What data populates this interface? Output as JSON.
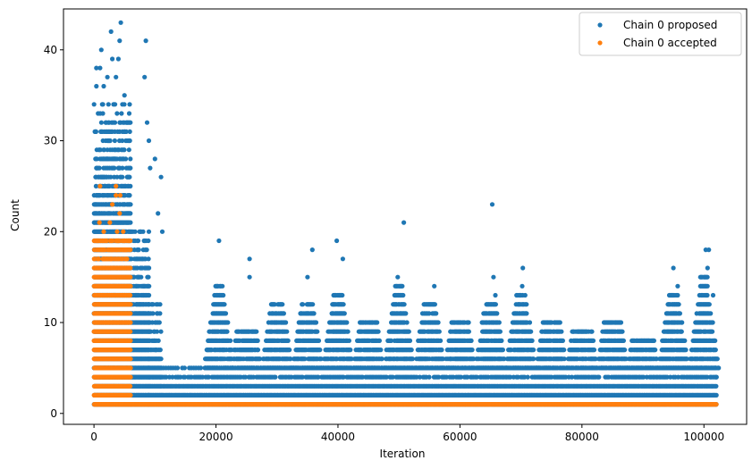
{
  "chart_data": {
    "type": "scatter",
    "title": "",
    "xlabel": "Iteration",
    "ylabel": "Count",
    "xlim": [
      -5000,
      107000
    ],
    "ylim": [
      -1.2,
      44.5
    ],
    "xticks": [
      0,
      20000,
      40000,
      60000,
      80000,
      100000
    ],
    "xtick_labels": [
      "0",
      "20000",
      "40000",
      "60000",
      "80000",
      "100000"
    ],
    "yticks": [
      0,
      10,
      20,
      30,
      40
    ],
    "ytick_labels": [
      "0",
      "10",
      "20",
      "30",
      "40"
    ],
    "grid": false,
    "legend_position": "top-right",
    "series": [
      {
        "name": "Chain 0 proposed",
        "color": "#1f77b4",
        "marker": "circle",
        "description_of_distribution": "dense bands of integer counts across all iterations",
        "bands": [
          {
            "x_range": [
              0,
              6000
            ],
            "y_max": 34
          },
          {
            "x_range": [
              6000,
              9000
            ],
            "y_max": 20
          },
          {
            "x_range": [
              9000,
              11000
            ],
            "y_max": 12
          },
          {
            "x_range": [
              11000,
              100000
            ],
            "y_max": 5
          },
          {
            "x_range": [
              6000,
              102000
            ],
            "y_min": 1,
            "y_max": 2
          }
        ],
        "clusters": [
          {
            "x": 20500,
            "y_max": 14
          },
          {
            "x": 25000,
            "y_max": 9
          },
          {
            "x": 30000,
            "y_max": 12
          },
          {
            "x": 35000,
            "y_max": 12
          },
          {
            "x": 40000,
            "y_max": 13
          },
          {
            "x": 45000,
            "y_max": 10
          },
          {
            "x": 50000,
            "y_max": 14
          },
          {
            "x": 55000,
            "y_max": 12
          },
          {
            "x": 60000,
            "y_max": 10
          },
          {
            "x": 65000,
            "y_max": 12
          },
          {
            "x": 70000,
            "y_max": 13
          },
          {
            "x": 75000,
            "y_max": 10
          },
          {
            "x": 80000,
            "y_max": 9
          },
          {
            "x": 85000,
            "y_max": 10
          },
          {
            "x": 90000,
            "y_max": 8
          },
          {
            "x": 95000,
            "y_max": 13
          },
          {
            "x": 100000,
            "y_max": 15
          }
        ],
        "outliers": [
          [
            400,
            38
          ],
          [
            400,
            36
          ],
          [
            1200,
            40
          ],
          [
            1600,
            36
          ],
          [
            2200,
            37
          ],
          [
            2800,
            42
          ],
          [
            3000,
            39
          ],
          [
            3600,
            37
          ],
          [
            4200,
            41
          ],
          [
            4400,
            43
          ],
          [
            4000,
            39
          ],
          [
            1000,
            38
          ],
          [
            5000,
            35
          ],
          [
            8500,
            41
          ],
          [
            8300,
            37
          ],
          [
            8700,
            32
          ],
          [
            9000,
            30
          ],
          [
            9200,
            27
          ],
          [
            10000,
            28
          ],
          [
            10500,
            22
          ],
          [
            11000,
            26
          ],
          [
            11200,
            20
          ],
          [
            20500,
            19
          ],
          [
            25500,
            17
          ],
          [
            25500,
            15
          ],
          [
            35000,
            15
          ],
          [
            35800,
            18
          ],
          [
            39800,
            19
          ],
          [
            40800,
            17
          ],
          [
            49800,
            15
          ],
          [
            50800,
            21
          ],
          [
            55800,
            14
          ],
          [
            65300,
            23
          ],
          [
            65500,
            15
          ],
          [
            65800,
            13
          ],
          [
            70300,
            16
          ],
          [
            70200,
            14
          ],
          [
            95000,
            16
          ],
          [
            95700,
            14
          ],
          [
            100300,
            18
          ],
          [
            100800,
            18
          ],
          [
            100600,
            16
          ],
          [
            101500,
            13
          ],
          [
            102000,
            4
          ]
        ]
      },
      {
        "name": "Chain 0 accepted",
        "color": "#ff7f0e",
        "marker": "circle",
        "description_of_distribution": "dense integer counts 1–19 for iterations 0–6000, then constant 1 to ~102000",
        "bands": [
          {
            "x_range": [
              0,
              6000
            ],
            "y_min": 1,
            "y_max": 19
          },
          {
            "x_range": [
              6000,
              102000
            ],
            "y_min": 1,
            "y_max": 1
          }
        ],
        "outliers": [
          [
            1000,
            25
          ],
          [
            3600,
            25
          ],
          [
            3600,
            24
          ],
          [
            4300,
            24
          ],
          [
            3000,
            23
          ],
          [
            4200,
            22
          ],
          [
            2600,
            21
          ],
          [
            900,
            21
          ],
          [
            3800,
            20
          ],
          [
            4800,
            20
          ],
          [
            1600,
            20
          ],
          [
            600,
            19
          ],
          [
            3900,
            19
          ],
          [
            4900,
            19
          ]
        ]
      }
    ]
  }
}
